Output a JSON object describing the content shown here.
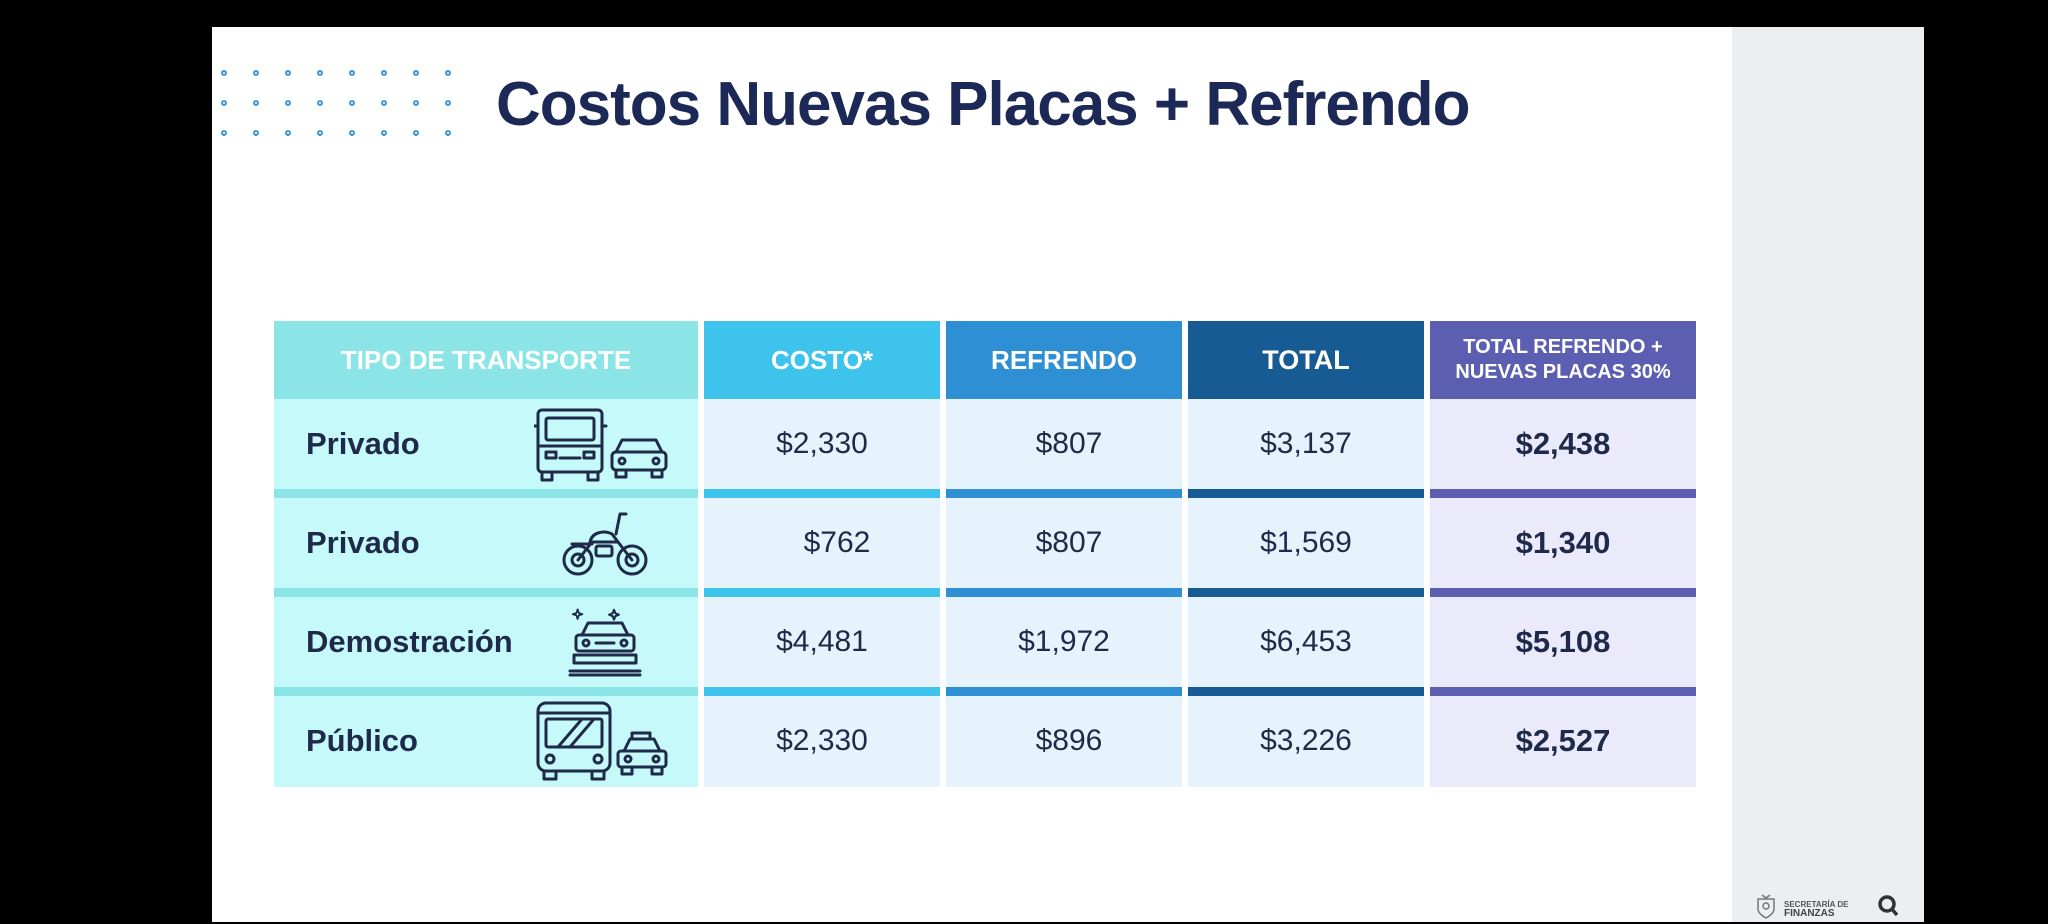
{
  "slide": {
    "title": "Costos Nuevas Placas + Refrendo"
  },
  "table": {
    "headers": {
      "tipo": "TIPO DE TRANSPORTE",
      "costo": "COSTO*",
      "refrendo": "REFRENDO",
      "total": "TOTAL",
      "combo_line1": "TOTAL REFRENDO +",
      "combo_line2": "NUEVAS PLACAS 30%"
    },
    "rows": [
      {
        "tipo": "Privado",
        "icon": "truck-and-car-icon",
        "costo": "$2,330",
        "refrendo": "$807",
        "total": "$3,137",
        "combo": "$2,438"
      },
      {
        "tipo": "Privado",
        "icon": "motorcycle-icon",
        "costo": "$762",
        "refrendo": "$807",
        "total": "$1,569",
        "combo": "$1,340"
      },
      {
        "tipo": "Demostración",
        "icon": "showroom-car-icon",
        "costo": "$4,481",
        "refrendo": "$1,972",
        "total": "$6,453",
        "combo": "$5,108"
      },
      {
        "tipo": "Público",
        "icon": "bus-and-taxi-icon",
        "costo": "$2,330",
        "refrendo": "$896",
        "total": "$3,226",
        "combo": "$2,527"
      }
    ]
  },
  "footer": {
    "line1": "SECRETARÍA DE",
    "line2": "FINANZAS"
  },
  "colors": {
    "tipo_header": "#8be5e6",
    "tipo_body": "#c6fafa",
    "costo_header": "#3ec4ec",
    "refrendo_header": "#2e8fd4",
    "total_header": "#175b95",
    "combo_header": "#5c5fb1",
    "value_body": "#e6f3fc",
    "combo_body": "#eaeafb",
    "title": "#1c2855"
  }
}
